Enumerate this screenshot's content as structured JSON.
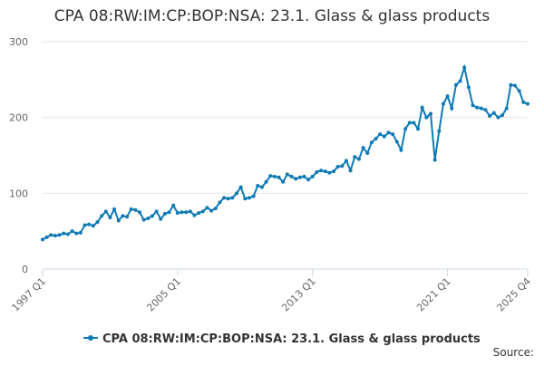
{
  "chart_data": {
    "type": "line",
    "title": "CPA 08:RW:IM:CP:BOP:NSA: 23.1. Glass & glass products",
    "source": "Source:",
    "categories": [
      "1997 Q1",
      null,
      null,
      null,
      null,
      null,
      null,
      null,
      null,
      null,
      null,
      null,
      null,
      null,
      null,
      null,
      null,
      null,
      null,
      null,
      null,
      null,
      null,
      null,
      null,
      null,
      null,
      null,
      null,
      null,
      null,
      null,
      "2005 Q1",
      null,
      null,
      null,
      null,
      null,
      null,
      null,
      null,
      null,
      null,
      null,
      null,
      null,
      null,
      null,
      null,
      null,
      null,
      null,
      null,
      null,
      null,
      null,
      null,
      null,
      null,
      null,
      null,
      null,
      null,
      null,
      "2013 Q1",
      null,
      null,
      null,
      null,
      null,
      null,
      null,
      null,
      null,
      null,
      null,
      null,
      null,
      null,
      null,
      null,
      null,
      null,
      null,
      null,
      null,
      null,
      null,
      null,
      null,
      null,
      null,
      null,
      null,
      null,
      null,
      "2021 Q1",
      null,
      null,
      null,
      null,
      null,
      null,
      null,
      null,
      null,
      null,
      null,
      null,
      null,
      null,
      null,
      null,
      null,
      null,
      "2025 Q4"
    ],
    "series": [
      {
        "name": "CPA 08:RW:IM:CP:BOP:NSA: 23.1. Glass & glass products",
        "color": "#0f7ab4",
        "values": [
          39,
          42,
          45,
          44,
          45,
          47,
          46,
          50,
          47,
          48,
          58,
          59,
          57,
          62,
          70,
          76,
          68,
          79,
          64,
          70,
          69,
          79,
          78,
          75,
          65,
          67,
          70,
          76,
          66,
          73,
          75,
          84,
          74,
          75,
          75,
          76,
          71,
          74,
          76,
          81,
          77,
          80,
          88,
          94,
          93,
          94,
          100,
          108,
          93,
          94,
          96,
          110,
          108,
          115,
          123,
          122,
          121,
          115,
          125,
          122,
          119,
          121,
          122,
          118,
          122,
          128,
          130,
          129,
          127,
          129,
          135,
          136,
          143,
          130,
          148,
          145,
          160,
          153,
          167,
          172,
          178,
          175,
          180,
          178,
          168,
          157,
          185,
          193,
          193,
          185,
          213,
          200,
          205,
          144,
          182,
          218,
          228,
          212,
          243,
          248,
          266,
          240,
          216,
          213,
          212,
          210,
          202,
          206,
          200,
          203,
          212,
          243,
          242,
          235,
          220,
          218
        ]
      }
    ],
    "ylim": [
      0,
      300
    ],
    "yticks": [
      0,
      100,
      200,
      300
    ],
    "grid": true
  }
}
